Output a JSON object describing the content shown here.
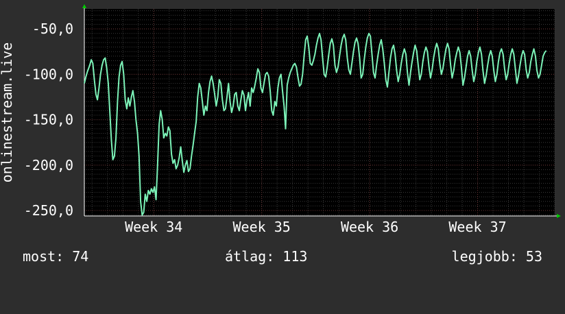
{
  "chart_data": {
    "type": "line",
    "ylabel": "onlinestream.live",
    "x_ticks": [
      "Week 34",
      "Week 35",
      "Week 36",
      "Week 37"
    ],
    "y_ticks": [
      "-50,0",
      "-100,0",
      "-150,0",
      "-200,0",
      "-250,0"
    ],
    "ylim": [
      -256,
      -28
    ],
    "xlim": [
      0,
      30.5
    ],
    "grid": true,
    "colors": {
      "background": "#2d2d2d",
      "plot_background": "#000000",
      "grid_minor": "#3a3a3a",
      "grid_major": "#6b3333",
      "series": "#7cf3b8",
      "axis_arrow": "#00cc00",
      "text": "#ffffff"
    },
    "series": [
      {
        "values": [
          [
            0.0,
            -110
          ],
          [
            0.1,
            -103
          ],
          [
            0.2,
            -97
          ],
          [
            0.35,
            -90
          ],
          [
            0.45,
            -84
          ],
          [
            0.55,
            -88
          ],
          [
            0.65,
            -106
          ],
          [
            0.75,
            -122
          ],
          [
            0.85,
            -128
          ],
          [
            0.95,
            -115
          ],
          [
            1.05,
            -100
          ],
          [
            1.15,
            -90
          ],
          [
            1.25,
            -84
          ],
          [
            1.35,
            -82
          ],
          [
            1.45,
            -93
          ],
          [
            1.55,
            -110
          ],
          [
            1.65,
            -140
          ],
          [
            1.75,
            -172
          ],
          [
            1.85,
            -194
          ],
          [
            1.95,
            -190
          ],
          [
            2.05,
            -170
          ],
          [
            2.15,
            -130
          ],
          [
            2.25,
            -103
          ],
          [
            2.35,
            -90
          ],
          [
            2.45,
            -86
          ],
          [
            2.55,
            -100
          ],
          [
            2.65,
            -128
          ],
          [
            2.75,
            -138
          ],
          [
            2.85,
            -126
          ],
          [
            2.95,
            -135
          ],
          [
            3.05,
            -125
          ],
          [
            3.15,
            -118
          ],
          [
            3.25,
            -130
          ],
          [
            3.35,
            -150
          ],
          [
            3.45,
            -165
          ],
          [
            3.55,
            -190
          ],
          [
            3.65,
            -240
          ],
          [
            3.75,
            -255
          ],
          [
            3.85,
            -252
          ],
          [
            3.95,
            -232
          ],
          [
            4.05,
            -240
          ],
          [
            4.15,
            -228
          ],
          [
            4.25,
            -232
          ],
          [
            4.35,
            -226
          ],
          [
            4.45,
            -230
          ],
          [
            4.55,
            -224
          ],
          [
            4.65,
            -238
          ],
          [
            4.75,
            -200
          ],
          [
            4.85,
            -155
          ],
          [
            4.95,
            -140
          ],
          [
            5.05,
            -150
          ],
          [
            5.15,
            -170
          ],
          [
            5.25,
            -165
          ],
          [
            5.35,
            -168
          ],
          [
            5.45,
            -158
          ],
          [
            5.55,
            -162
          ],
          [
            5.65,
            -188
          ],
          [
            5.75,
            -198
          ],
          [
            5.85,
            -194
          ],
          [
            5.95,
            -204
          ],
          [
            6.05,
            -200
          ],
          [
            6.15,
            -192
          ],
          [
            6.25,
            -180
          ],
          [
            6.35,
            -195
          ],
          [
            6.45,
            -208
          ],
          [
            6.55,
            -200
          ],
          [
            6.65,
            -195
          ],
          [
            6.75,
            -207
          ],
          [
            6.85,
            -204
          ],
          [
            6.95,
            -190
          ],
          [
            7.05,
            -178
          ],
          [
            7.15,
            -165
          ],
          [
            7.25,
            -152
          ],
          [
            7.35,
            -125
          ],
          [
            7.45,
            -110
          ],
          [
            7.55,
            -115
          ],
          [
            7.65,
            -130
          ],
          [
            7.75,
            -145
          ],
          [
            7.85,
            -135
          ],
          [
            7.95,
            -140
          ],
          [
            8.05,
            -120
          ],
          [
            8.15,
            -108
          ],
          [
            8.25,
            -102
          ],
          [
            8.35,
            -110
          ],
          [
            8.45,
            -122
          ],
          [
            8.55,
            -135
          ],
          [
            8.65,
            -125
          ],
          [
            8.75,
            -106
          ],
          [
            8.85,
            -110
          ],
          [
            8.95,
            -128
          ],
          [
            9.05,
            -140
          ],
          [
            9.15,
            -138
          ],
          [
            9.25,
            -125
          ],
          [
            9.35,
            -110
          ],
          [
            9.45,
            -130
          ],
          [
            9.55,
            -142
          ],
          [
            9.65,
            -135
          ],
          [
            9.75,
            -122
          ],
          [
            9.85,
            -120
          ],
          [
            9.95,
            -135
          ],
          [
            10.05,
            -140
          ],
          [
            10.15,
            -128
          ],
          [
            10.25,
            -118
          ],
          [
            10.35,
            -123
          ],
          [
            10.45,
            -140
          ],
          [
            10.55,
            -128
          ],
          [
            10.65,
            -120
          ],
          [
            10.75,
            -135
          ],
          [
            10.85,
            -115
          ],
          [
            10.95,
            -120
          ],
          [
            11.05,
            -113
          ],
          [
            11.15,
            -104
          ],
          [
            11.25,
            -94
          ],
          [
            11.35,
            -98
          ],
          [
            11.45,
            -115
          ],
          [
            11.55,
            -120
          ],
          [
            11.65,
            -110
          ],
          [
            11.75,
            -100
          ],
          [
            11.85,
            -98
          ],
          [
            11.95,
            -102
          ],
          [
            12.05,
            -118
          ],
          [
            12.15,
            -140
          ],
          [
            12.25,
            -145
          ],
          [
            12.35,
            -130
          ],
          [
            12.45,
            -135
          ],
          [
            12.55,
            -115
          ],
          [
            12.65,
            -104
          ],
          [
            12.75,
            -100
          ],
          [
            12.85,
            -118
          ],
          [
            12.95,
            -135
          ],
          [
            13.05,
            -160
          ],
          [
            13.15,
            -112
          ],
          [
            13.25,
            -104
          ],
          [
            13.35,
            -98
          ],
          [
            13.45,
            -94
          ],
          [
            13.55,
            -90
          ],
          [
            13.65,
            -88
          ],
          [
            13.75,
            -92
          ],
          [
            13.85,
            -103
          ],
          [
            13.95,
            -113
          ],
          [
            14.05,
            -111
          ],
          [
            14.15,
            -100
          ],
          [
            14.25,
            -80
          ],
          [
            14.35,
            -62
          ],
          [
            14.45,
            -58
          ],
          [
            14.55,
            -70
          ],
          [
            14.65,
            -88
          ],
          [
            14.75,
            -90
          ],
          [
            14.85,
            -85
          ],
          [
            14.95,
            -78
          ],
          [
            15.05,
            -68
          ],
          [
            15.15,
            -60
          ],
          [
            15.25,
            -55
          ],
          [
            15.35,
            -62
          ],
          [
            15.45,
            -82
          ],
          [
            15.55,
            -100
          ],
          [
            15.65,
            -103
          ],
          [
            15.75,
            -92
          ],
          [
            15.85,
            -78
          ],
          [
            15.95,
            -66
          ],
          [
            16.05,
            -61
          ],
          [
            16.15,
            -68
          ],
          [
            16.25,
            -90
          ],
          [
            16.35,
            -98
          ],
          [
            16.45,
            -92
          ],
          [
            16.55,
            -80
          ],
          [
            16.65,
            -68
          ],
          [
            16.75,
            -60
          ],
          [
            16.85,
            -56
          ],
          [
            16.95,
            -62
          ],
          [
            17.05,
            -82
          ],
          [
            17.15,
            -95
          ],
          [
            17.25,
            -100
          ],
          [
            17.35,
            -88
          ],
          [
            17.45,
            -75
          ],
          [
            17.55,
            -65
          ],
          [
            17.65,
            -60
          ],
          [
            17.75,
            -66
          ],
          [
            17.85,
            -82
          ],
          [
            17.95,
            -104
          ],
          [
            18.05,
            -100
          ],
          [
            18.15,
            -84
          ],
          [
            18.25,
            -70
          ],
          [
            18.35,
            -60
          ],
          [
            18.45,
            -55
          ],
          [
            18.55,
            -58
          ],
          [
            18.65,
            -78
          ],
          [
            18.75,
            -98
          ],
          [
            18.85,
            -104
          ],
          [
            18.95,
            -90
          ],
          [
            19.05,
            -78
          ],
          [
            19.15,
            -68
          ],
          [
            19.25,
            -62
          ],
          [
            19.35,
            -72
          ],
          [
            19.45,
            -88
          ],
          [
            19.55,
            -106
          ],
          [
            19.65,
            -114
          ],
          [
            19.75,
            -98
          ],
          [
            19.85,
            -82
          ],
          [
            19.95,
            -72
          ],
          [
            20.05,
            -68
          ],
          [
            20.15,
            -78
          ],
          [
            20.25,
            -96
          ],
          [
            20.35,
            -108
          ],
          [
            20.45,
            -100
          ],
          [
            20.55,
            -88
          ],
          [
            20.65,
            -78
          ],
          [
            20.75,
            -72
          ],
          [
            20.85,
            -78
          ],
          [
            20.95,
            -98
          ],
          [
            21.05,
            -112
          ],
          [
            21.15,
            -98
          ],
          [
            21.25,
            -86
          ],
          [
            21.35,
            -76
          ],
          [
            21.45,
            -68
          ],
          [
            21.55,
            -74
          ],
          [
            21.65,
            -90
          ],
          [
            21.75,
            -106
          ],
          [
            21.85,
            -100
          ],
          [
            21.95,
            -86
          ],
          [
            22.05,
            -76
          ],
          [
            22.15,
            -70
          ],
          [
            22.25,
            -75
          ],
          [
            22.35,
            -92
          ],
          [
            22.45,
            -104
          ],
          [
            22.55,
            -95
          ],
          [
            22.65,
            -82
          ],
          [
            22.75,
            -72
          ],
          [
            22.85,
            -66
          ],
          [
            22.95,
            -72
          ],
          [
            23.05,
            -88
          ],
          [
            23.15,
            -100
          ],
          [
            23.25,
            -94
          ],
          [
            23.35,
            -82
          ],
          [
            23.45,
            -72
          ],
          [
            23.55,
            -66
          ],
          [
            23.65,
            -72
          ],
          [
            23.75,
            -90
          ],
          [
            23.85,
            -104
          ],
          [
            23.95,
            -96
          ],
          [
            24.05,
            -84
          ],
          [
            24.15,
            -76
          ],
          [
            24.25,
            -70
          ],
          [
            24.35,
            -76
          ],
          [
            24.45,
            -92
          ],
          [
            24.55,
            -112
          ],
          [
            24.65,
            -104
          ],
          [
            24.75,
            -92
          ],
          [
            24.85,
            -80
          ],
          [
            24.95,
            -74
          ],
          [
            25.05,
            -80
          ],
          [
            25.15,
            -96
          ],
          [
            25.25,
            -108
          ],
          [
            25.35,
            -100
          ],
          [
            25.45,
            -86
          ],
          [
            25.55,
            -76
          ],
          [
            25.65,
            -70
          ],
          [
            25.75,
            -78
          ],
          [
            25.85,
            -96
          ],
          [
            25.95,
            -110
          ],
          [
            26.05,
            -102
          ],
          [
            26.15,
            -90
          ],
          [
            26.25,
            -80
          ],
          [
            26.35,
            -74
          ],
          [
            26.45,
            -80
          ],
          [
            26.55,
            -96
          ],
          [
            26.65,
            -108
          ],
          [
            26.75,
            -100
          ],
          [
            26.85,
            -86
          ],
          [
            26.95,
            -76
          ],
          [
            27.05,
            -72
          ],
          [
            27.15,
            -78
          ],
          [
            27.25,
            -94
          ],
          [
            27.35,
            -106
          ],
          [
            27.45,
            -100
          ],
          [
            27.55,
            -88
          ],
          [
            27.65,
            -78
          ],
          [
            27.75,
            -72
          ],
          [
            27.85,
            -78
          ],
          [
            27.95,
            -94
          ],
          [
            28.05,
            -110
          ],
          [
            28.15,
            -102
          ],
          [
            28.25,
            -90
          ],
          [
            28.35,
            -80
          ],
          [
            28.45,
            -74
          ],
          [
            28.55,
            -78
          ],
          [
            28.65,
            -95
          ],
          [
            28.75,
            -104
          ],
          [
            28.85,
            -98
          ],
          [
            28.95,
            -86
          ],
          [
            29.05,
            -78
          ],
          [
            29.15,
            -72
          ],
          [
            29.25,
            -80
          ],
          [
            29.35,
            -96
          ],
          [
            29.45,
            -104
          ],
          [
            29.55,
            -100
          ],
          [
            29.65,
            -90
          ],
          [
            29.75,
            -80
          ],
          [
            29.85,
            -76
          ],
          [
            29.95,
            -74
          ]
        ]
      }
    ]
  },
  "stats": {
    "now_label": "most:",
    "now_value": "74",
    "avg_label": "átlag:",
    "avg_value": "113",
    "best_label": "legjobb:",
    "best_value": "53"
  }
}
